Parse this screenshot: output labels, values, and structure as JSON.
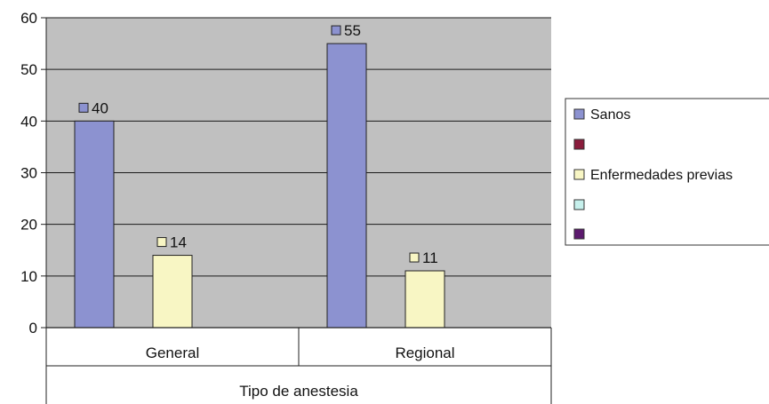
{
  "chart_data": {
    "type": "bar",
    "categories": [
      "General",
      "Regional"
    ],
    "xlabel": "Tipo de anestesia",
    "ylabel": "",
    "ylim": [
      0,
      60
    ],
    "yticks": [
      0,
      10,
      20,
      30,
      40,
      50,
      60
    ],
    "grid": true,
    "legend_position": "right",
    "series": [
      {
        "name": "Sanos",
        "values": [
          40,
          55
        ],
        "color": "#8c92d0"
      },
      {
        "name": "",
        "values": [
          null,
          null
        ],
        "color": "#8a1c3c"
      },
      {
        "name": "Enfermedades previas",
        "values": [
          14,
          11
        ],
        "color": "#f8f6c4"
      },
      {
        "name": "",
        "values": [
          null,
          null
        ],
        "color": "#c6f0ec"
      },
      {
        "name": "",
        "values": [
          null,
          null
        ],
        "color": "#5c1a6e"
      }
    ],
    "data_labels": [
      [
        "40",
        "55"
      ],
      null,
      [
        "14",
        "11"
      ],
      null,
      null
    ],
    "plot_background": "#c0c0c0"
  }
}
